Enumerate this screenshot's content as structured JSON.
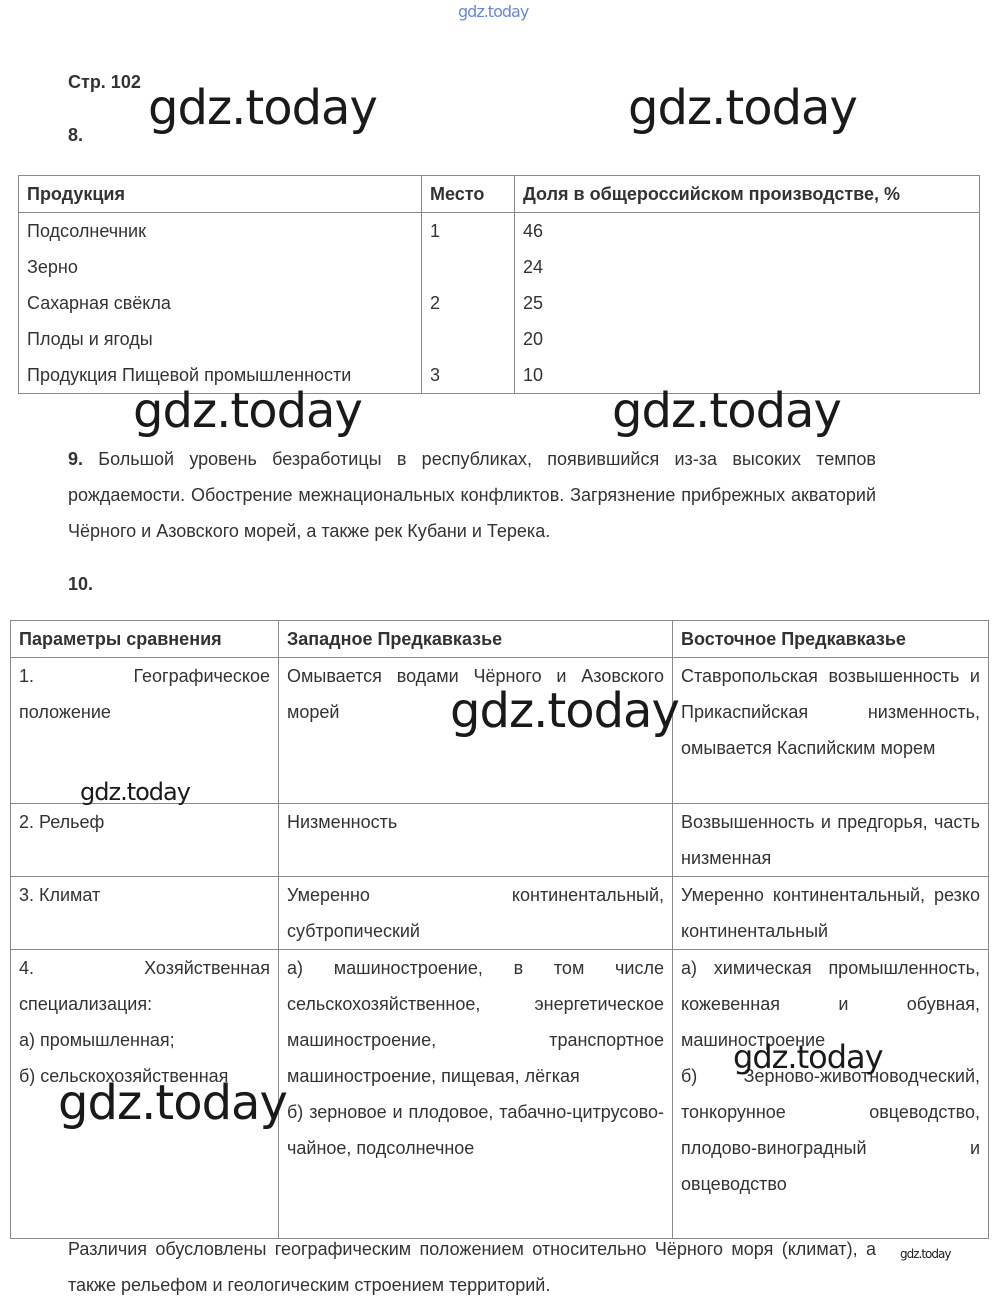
{
  "header": {
    "top_mark": "gdz.today",
    "page": "Стр. 102"
  },
  "task8": {
    "number": "8.",
    "table": {
      "headers": [
        "Продукция",
        "Место",
        "Доля в общероссийском производстве, %"
      ],
      "rows": [
        [
          "Подсолнечник",
          "1",
          "46"
        ],
        [
          "Зерно",
          "",
          "24"
        ],
        [
          "Сахарная свёкла",
          "2",
          "25"
        ],
        [
          "Плоды и ягоды",
          "",
          "20"
        ],
        [
          "Продукция Пищевой промышленности",
          "3",
          "10"
        ]
      ]
    }
  },
  "task9": {
    "number": "9.",
    "text": "Большой уровень безработицы в республиках, появившийся из-за высоких темпов рождаемости. Обострение межнациональных конфликтов. Загрязнение прибрежных акваторий Чёрного и Азовского морей, а также рек Кубани и Терека."
  },
  "task10": {
    "number": "10.",
    "table": {
      "headers": [
        "Параметры сравнения",
        "Западное Предкавказье",
        "Восточное Предкавказье"
      ],
      "rows": [
        [
          [
            "1. Географическое положение"
          ],
          [
            "Омывается водами Чёрного и Азовского морей"
          ],
          [
            "Ставропольская возвышенность и Прикаспийская низменность, омывается Каспийским морем"
          ]
        ],
        [
          [
            "2. Рельеф"
          ],
          [
            "Низменность"
          ],
          [
            "Возвышенность и предгорья, часть низменная"
          ]
        ],
        [
          [
            "3. Климат"
          ],
          [
            "Умеренно континентальный, субтропический"
          ],
          [
            "Умеренно континентальный, резко континентальный"
          ]
        ],
        [
          [
            "4. Хозяйственная специализация:",
            "а) промышленная;",
            "б) сельскохозяйственная"
          ],
          [
            "а) машиностроение, в том числе сельскохозяйственное, энергетическое машиностроение, транспортное машиностроение, пищевая, лёгкая",
            "б) зерновое и плодовое, табачно-цитрусово-чайное, подсолнечное"
          ],
          [
            "а) химическая промышленность, кожевенная и обувная, машиностроение",
            "б) Зерново-животноводческий, тонкорунное овцеводство, плодово-виноградный и овцеводство"
          ]
        ]
      ]
    },
    "conclusion": "Различия обусловлены географическим положением относительно Чёрного моря (климат), а также рельефом и геологическим строением территорий."
  },
  "watermarks": [
    "gdz.today",
    "gdz.today",
    "gdz.today",
    "gdz.today",
    "gdz.today",
    "gdz.today",
    "gdz.today",
    "gdz.today",
    "gdz.today"
  ]
}
